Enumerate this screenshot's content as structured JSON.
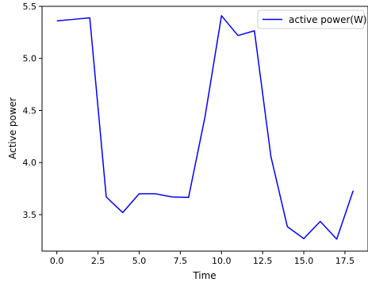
{
  "chart_data": {
    "type": "line",
    "title": "",
    "xlabel": "Time",
    "ylabel": "Active power",
    "xlim": [
      -0.9,
      18.9
    ],
    "ylim": [
      3.15,
      5.5
    ],
    "x_ticks": [
      0.0,
      2.5,
      5.0,
      7.5,
      10.0,
      12.5,
      15.0,
      17.5
    ],
    "x_tick_labels": [
      "0.0",
      "2.5",
      "5.0",
      "7.5",
      "10.0",
      "12.5",
      "15.0",
      "17.5"
    ],
    "y_ticks": [
      3.5,
      4.0,
      4.5,
      5.0,
      5.5
    ],
    "y_tick_labels": [
      "3.5",
      "4.0",
      "4.5",
      "5.0",
      "5.5"
    ],
    "grid": false,
    "legend_position": "top-right",
    "series": [
      {
        "name": "active power(W)",
        "color": "#0000ff",
        "x": [
          0,
          1,
          2,
          3,
          4,
          5,
          6,
          7,
          8,
          9,
          10,
          11,
          12,
          13,
          14,
          15,
          16,
          17,
          18
        ],
        "y": [
          5.36,
          5.375,
          5.39,
          3.67,
          3.52,
          3.7,
          3.7,
          3.67,
          3.665,
          4.44,
          5.41,
          5.22,
          5.265,
          4.06,
          3.385,
          3.27,
          3.435,
          3.265,
          3.73
        ]
      }
    ]
  }
}
